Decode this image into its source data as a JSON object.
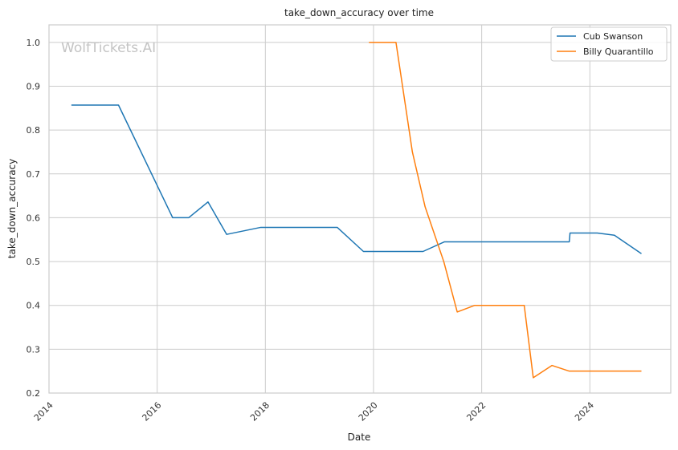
{
  "chart_data": {
    "type": "line",
    "title": "take_down_accuracy over time",
    "xlabel": "Date",
    "ylabel": "take_down_accuracy",
    "watermark": "WolfTickets.AI",
    "xlim": [
      "2014-01-01",
      "2025-07-01"
    ],
    "ylim": [
      0.2,
      1.04
    ],
    "x_ticks": [
      "2014",
      "2016",
      "2018",
      "2020",
      "2022",
      "2024"
    ],
    "y_ticks": [
      "0.2",
      "0.3",
      "0.4",
      "0.5",
      "0.6",
      "0.7",
      "0.8",
      "0.9",
      "1.0"
    ],
    "grid": true,
    "legend_position": "top-right",
    "series": [
      {
        "name": "Cub Swanson",
        "color": "#1f77b4",
        "points": [
          [
            "2014-06-01",
            0.857
          ],
          [
            "2015-04-15",
            0.857
          ],
          [
            "2016-04-15",
            0.6
          ],
          [
            "2016-08-01",
            0.6
          ],
          [
            "2016-12-10",
            0.636
          ],
          [
            "2017-04-15",
            0.562
          ],
          [
            "2017-12-01",
            0.578
          ],
          [
            "2019-05-01",
            0.578
          ],
          [
            "2019-10-25",
            0.523
          ],
          [
            "2020-12-01",
            0.523
          ],
          [
            "2021-04-25",
            0.545
          ],
          [
            "2023-08-15",
            0.545
          ],
          [
            "2023-08-20",
            0.565
          ],
          [
            "2024-02-20",
            0.565
          ],
          [
            "2024-06-15",
            0.56
          ],
          [
            "2024-12-15",
            0.518
          ]
        ]
      },
      {
        "name": "Billy Quarantillo",
        "color": "#ff7f0e",
        "points": [
          [
            "2019-12-01",
            1.0
          ],
          [
            "2020-06-01",
            1.0
          ],
          [
            "2020-09-20",
            0.75
          ],
          [
            "2020-12-15",
            0.625
          ],
          [
            "2021-04-20",
            0.5
          ],
          [
            "2021-07-20",
            0.385
          ],
          [
            "2021-11-15",
            0.4
          ],
          [
            "2022-10-15",
            0.4
          ],
          [
            "2022-12-15",
            0.235
          ],
          [
            "2023-04-20",
            0.263
          ],
          [
            "2023-08-15",
            0.25
          ],
          [
            "2024-12-15",
            0.25
          ]
        ]
      }
    ]
  }
}
